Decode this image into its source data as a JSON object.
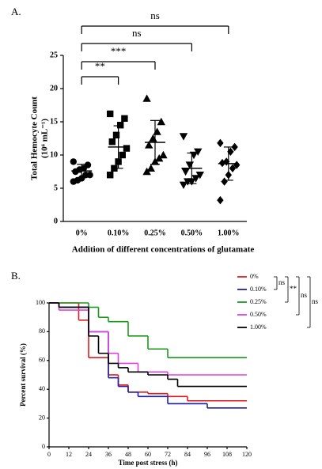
{
  "chart_data": [
    {
      "type": "strip",
      "panel_label": "A.",
      "y_label": [
        "Total Hemocyte Count",
        "(10⁶ mL⁻¹)"
      ],
      "x_label": "Addition of different concentrations of glutamate",
      "categories": [
        "0%",
        "0.10%",
        "0.25%",
        "0.50%",
        "1.00%"
      ],
      "markers": [
        "circle",
        "square",
        "triangle",
        "triangle-down",
        "diamond"
      ],
      "color": "#000000",
      "values": [
        [
          9.0,
          8.5,
          8.0,
          7.8,
          7.5,
          7.0,
          7.0,
          6.5,
          6.2,
          6.0
        ],
        [
          16.2,
          15.5,
          14.5,
          13.0,
          12.0,
          11.0,
          10.0,
          9.0,
          8.0,
          7.0
        ],
        [
          18.5,
          15.0,
          13.5,
          12.5,
          11.5,
          10.0,
          9.5,
          9.0,
          8.0,
          7.5
        ],
        [
          12.8,
          10.5,
          10.0,
          8.5,
          7.5,
          7.0,
          6.5,
          6.0,
          6.0,
          5.5
        ],
        [
          11.8,
          11.2,
          10.5,
          9.0,
          8.8,
          8.5,
          8.0,
          7.0,
          6.0,
          3.2
        ]
      ],
      "means": [
        7.6,
        11.2,
        11.9,
        8.0,
        8.7
      ],
      "errors": [
        1.0,
        3.2,
        3.3,
        2.3,
        2.5
      ],
      "ylim": [
        0,
        25
      ],
      "yticks": [
        0,
        5,
        10,
        15,
        20,
        25
      ],
      "brackets": [
        "**",
        "***",
        "ns",
        "ns"
      ]
    },
    {
      "type": "survival",
      "panel_label": "B.",
      "y_label": "Percent survival (%)",
      "x_label": "Time post stress (h)",
      "xlim": [
        0,
        120
      ],
      "xticks": [
        0,
        12,
        24,
        36,
        48,
        60,
        72,
        84,
        96,
        108,
        120
      ],
      "ylim": [
        0,
        100
      ],
      "yticks": [
        0,
        20,
        40,
        60,
        80,
        100
      ],
      "series": [
        {
          "name": "0%",
          "color": "#e31a1c",
          "x": [
            0,
            18,
            24,
            36,
            42,
            48,
            60,
            72,
            84,
            120
          ],
          "values": [
            100,
            88,
            62,
            50,
            43,
            38,
            37,
            35,
            32,
            32
          ]
        },
        {
          "name": "0.10%",
          "color": "#1f1fa8",
          "x": [
            0,
            6,
            24,
            36,
            42,
            48,
            54,
            72,
            96,
            120
          ],
          "values": [
            100,
            97,
            80,
            48,
            42,
            38,
            35,
            30,
            27,
            27
          ]
        },
        {
          "name": "0.25%",
          "color": "#1a9a1a",
          "x": [
            0,
            24,
            30,
            36,
            48,
            60,
            72,
            120
          ],
          "values": [
            100,
            97,
            90,
            87,
            77,
            68,
            62,
            62
          ]
        },
        {
          "name": "0.50%",
          "color": "#e040e0",
          "x": [
            0,
            6,
            24,
            36,
            42,
            54,
            72,
            120
          ],
          "values": [
            100,
            95,
            80,
            65,
            58,
            52,
            50,
            50
          ]
        },
        {
          "name": "1.00%",
          "color": "#000000",
          "x": [
            0,
            6,
            24,
            30,
            36,
            42,
            48,
            60,
            72,
            78,
            120
          ],
          "values": [
            100,
            97,
            77,
            65,
            58,
            55,
            52,
            50,
            47,
            42,
            42
          ]
        }
      ],
      "brackets": [
        "ns",
        "**",
        "ns",
        "ns"
      ]
    }
  ]
}
